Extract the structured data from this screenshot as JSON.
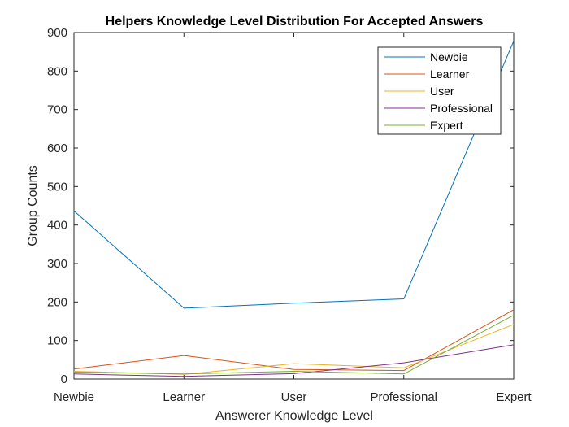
{
  "chart_data": {
    "type": "line",
    "title": "Helpers Knowledge Level Distribution For Accepted Answers",
    "xlabel": "Answerer Knowledge Level",
    "ylabel": "Group Counts",
    "categories": [
      "Newbie",
      "Learner",
      "User",
      "Professional",
      "Expert"
    ],
    "ylim": [
      0,
      900
    ],
    "yticks": [
      0,
      100,
      200,
      300,
      400,
      500,
      600,
      700,
      800,
      900
    ],
    "grid": false,
    "legend_position": "top-right",
    "series": [
      {
        "name": "Newbie",
        "color": "#0072BD",
        "values": [
          437,
          184,
          197,
          208,
          878
        ]
      },
      {
        "name": "Learner",
        "color": "#D95319",
        "values": [
          26,
          61,
          25,
          22,
          180
        ]
      },
      {
        "name": "User",
        "color": "#EDB120",
        "values": [
          20,
          12,
          40,
          29,
          142
        ]
      },
      {
        "name": "Professional",
        "color": "#7E2F8E",
        "values": [
          13,
          7,
          14,
          42,
          89
        ]
      },
      {
        "name": "Expert",
        "color": "#77AC30",
        "values": [
          18,
          13,
          20,
          13,
          166
        ]
      }
    ]
  }
}
